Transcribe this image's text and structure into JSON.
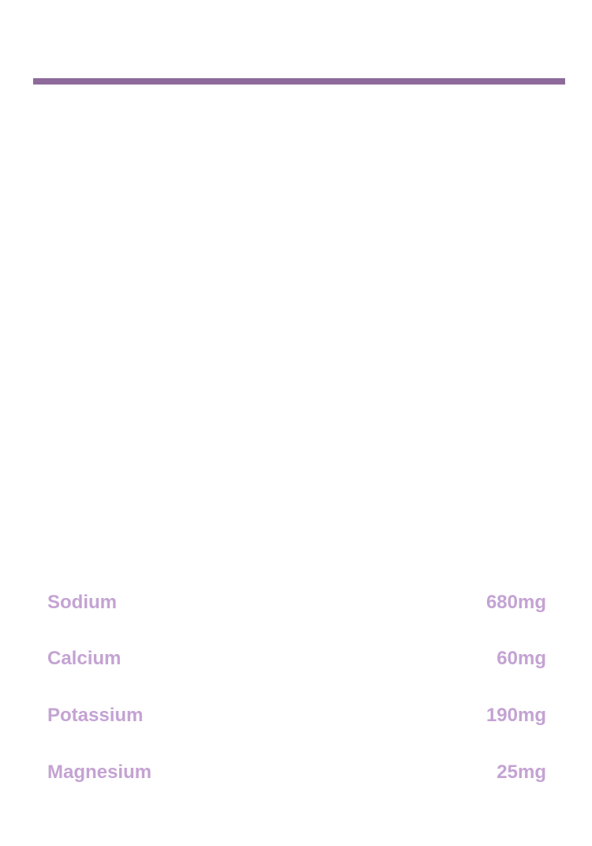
{
  "colors": {
    "accent_bar": "#8e6a9b",
    "text": "#c4a3d3"
  },
  "nutrients": [
    {
      "label": "Sodium",
      "value": "680mg"
    },
    {
      "label": "Calcium",
      "value": "60mg"
    },
    {
      "label": "Potassium",
      "value": "190mg"
    },
    {
      "label": "Magnesium",
      "value": "25mg"
    }
  ]
}
